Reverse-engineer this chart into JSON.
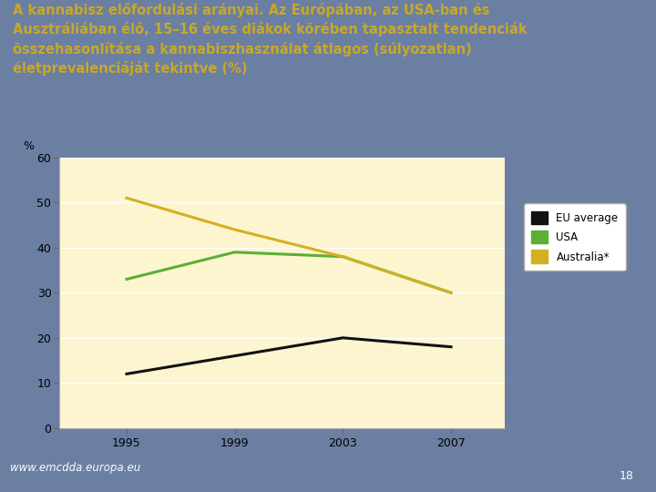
{
  "title_line1": "A kannabisz előfordulási arányai. Az Európában, az USA-ban és",
  "title_line2": "Ausztráliában élő, 15–16 éves diákok körében tapasztalt tendenciák",
  "title_line3": "összehasonlítása a kannabiszhasználat átlagos (súlyozatlan)",
  "title_line4": "életprevalenciáját tekintve (%)",
  "title_color": "#c8a827",
  "background_outer": "#6b7fa3",
  "background_inner": "#fdf5d0",
  "years": [
    1995,
    1999,
    2003,
    2007
  ],
  "eu_average": [
    12,
    16,
    20,
    18
  ],
  "usa": [
    33,
    39,
    38,
    30
  ],
  "australia": [
    51,
    44,
    38,
    30
  ],
  "eu_color": "#111111",
  "usa_color": "#5ab033",
  "australia_color": "#d4b020",
  "ylabel": "%",
  "ylim": [
    0,
    60
  ],
  "yticks": [
    0,
    10,
    20,
    30,
    40,
    50,
    60
  ],
  "legend_labels": [
    "EU average",
    "USA",
    "Australia*"
  ],
  "footer_text": "www.emcdda.europa.eu",
  "footer_number": "18",
  "line_width": 2.2
}
